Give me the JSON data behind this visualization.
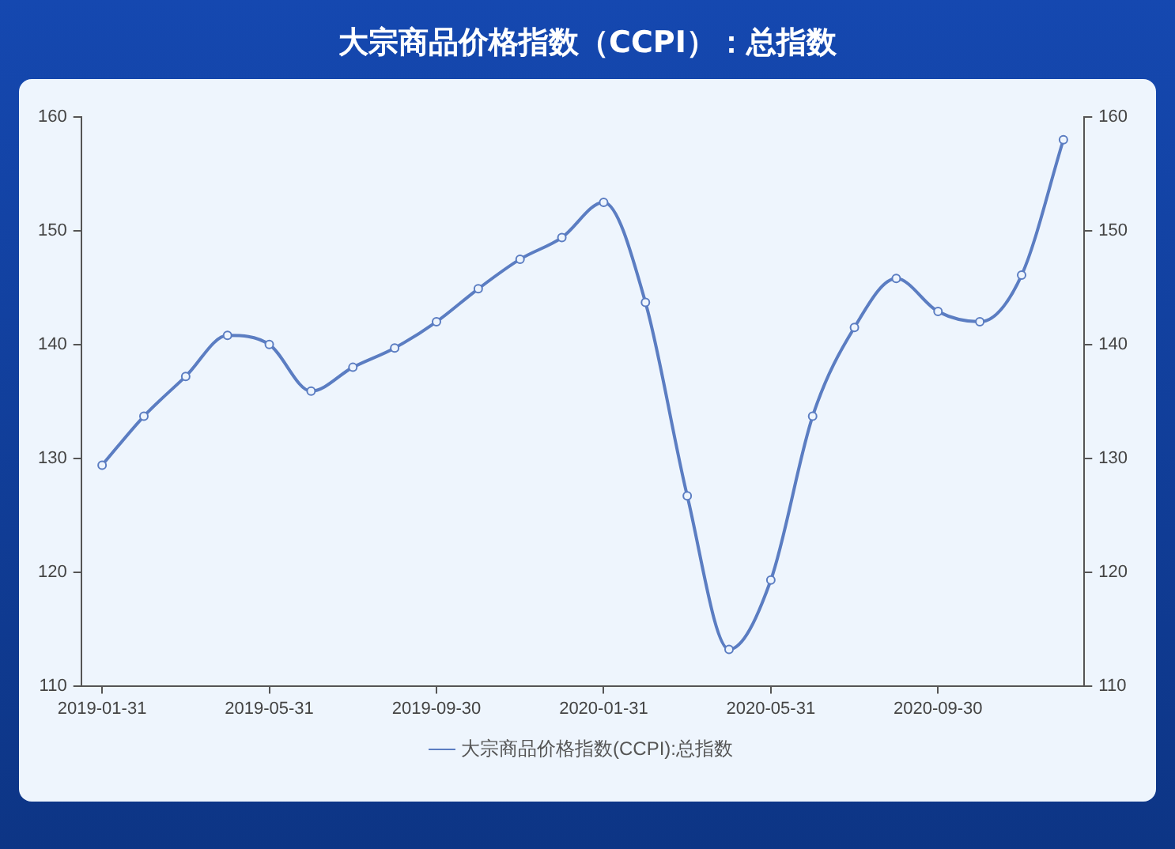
{
  "chart_data": {
    "type": "line",
    "title": "大宗商品价格指数（CCPI）：总指数",
    "categories": [
      "2019-01-31",
      null,
      null,
      null,
      "2019-05-31",
      null,
      null,
      null,
      "2019-09-30",
      null,
      null,
      null,
      "2020-01-31",
      null,
      null,
      null,
      "2020-05-31",
      null,
      null,
      null,
      "2020-09-30",
      null,
      null,
      null
    ],
    "series": [
      {
        "name": "大宗商品价格指数(CCPI):总指数",
        "color": "#5b7dc2",
        "values": [
          129.4,
          133.7,
          137.2,
          140.8,
          140.0,
          135.9,
          138.0,
          139.7,
          142.0,
          144.9,
          147.5,
          149.4,
          152.5,
          143.7,
          126.7,
          113.2,
          119.3,
          133.7,
          141.5,
          145.8,
          142.9,
          142.0,
          146.1,
          158.0
        ]
      }
    ],
    "ylim": [
      110,
      160
    ],
    "yticks": [
      110,
      120,
      130,
      140,
      150,
      160
    ],
    "y2lim": [
      110,
      160
    ],
    "y2ticks": [
      110,
      120,
      130,
      140,
      150,
      160
    ],
    "grid": false,
    "legend": "bottom",
    "marker": "circle",
    "line_style": "solid"
  }
}
